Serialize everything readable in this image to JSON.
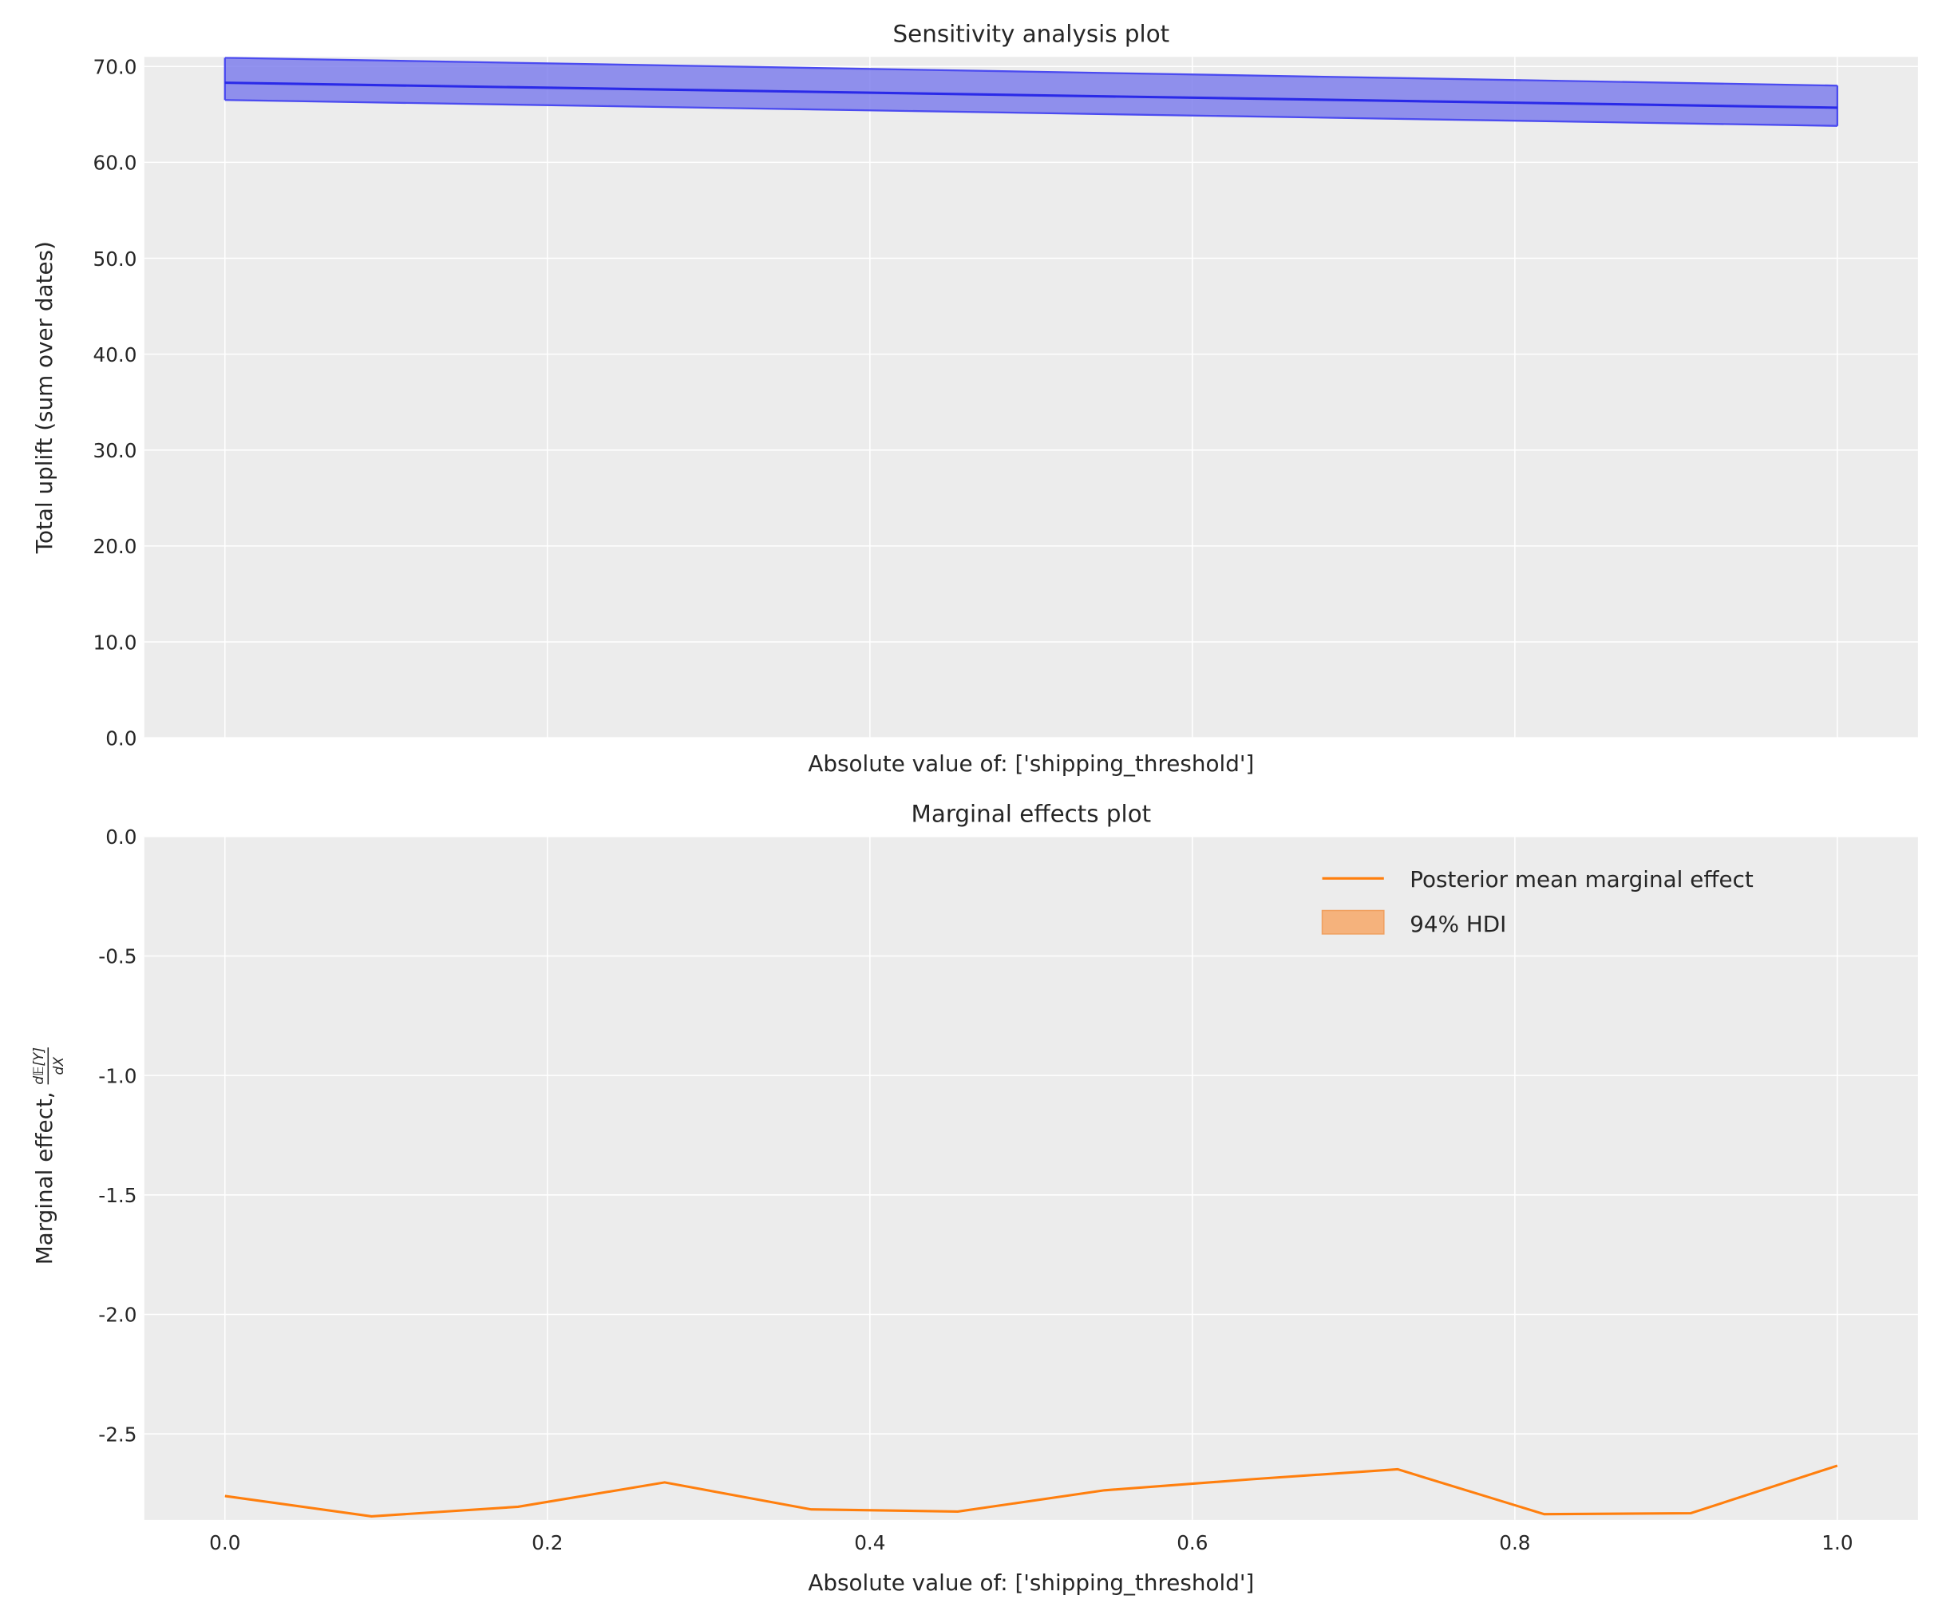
{
  "chart_data": [
    {
      "type": "line",
      "title": "Sensitivity analysis plot",
      "xlabel": "Absolute value of: ['shipping_threshold']",
      "ylabel": "Total uplift (sum over dates)",
      "xlim": [
        -0.05,
        1.05
      ],
      "ylim": [
        0,
        71.0
      ],
      "x_ticks": [
        0.0,
        0.2,
        0.4,
        0.6,
        0.8,
        1.0
      ],
      "x_tick_labels_shown": false,
      "y_ticks": [
        0,
        10,
        20,
        30,
        40,
        50,
        60,
        70
      ],
      "y_tick_labels": [
        "0.0",
        "10.0",
        "20.0",
        "30.0",
        "40.0",
        "50.0",
        "60.0",
        "70.0"
      ],
      "grid": true,
      "background": "#ececec",
      "series": [
        {
          "kind": "line",
          "color": "#2a2ae8",
          "x": [
            0.0,
            1.0
          ],
          "y": [
            68.3,
            65.7
          ]
        },
        {
          "kind": "band",
          "color": "#7f7fec",
          "x": [
            0.0,
            1.0
          ],
          "lower": [
            66.5,
            63.8
          ],
          "upper": [
            70.9,
            68.0
          ]
        }
      ]
    },
    {
      "type": "line",
      "title": "Marginal effects plot",
      "xlabel": "Absolute value of: ['shipping_threshold']",
      "ylabel": "Marginal effect,",
      "ylabel_fraction": {
        "numerator": "d𝔼[Y]",
        "denominator": "dX"
      },
      "xlim": [
        -0.05,
        1.05
      ],
      "ylim": [
        -2.86,
        0.0
      ],
      "x_ticks": [
        0.0,
        0.2,
        0.4,
        0.6,
        0.8,
        1.0
      ],
      "x_tick_labels": [
        "0.0",
        "0.2",
        "0.4",
        "0.6",
        "0.8",
        "1.0"
      ],
      "y_ticks": [
        0.0,
        -0.5,
        -1.0,
        -1.5,
        -2.0,
        -2.5
      ],
      "y_tick_labels": [
        "0.0",
        "-0.5",
        "-1.0",
        "-1.5",
        "-2.0",
        "-2.5"
      ],
      "grid": true,
      "background": "#ececec",
      "legend": {
        "placement": "upper right",
        "entries": [
          {
            "label": "Posterior mean marginal effect",
            "kind": "line",
            "color": "#ff7f0e"
          },
          {
            "label": "94% HDI",
            "kind": "patch",
            "color": "#f5b27c"
          }
        ]
      },
      "series": [
        {
          "name": "Posterior mean marginal effect",
          "kind": "line",
          "color": "#ff7f0e",
          "x": [
            0.0,
            0.0909,
            0.1818,
            0.2727,
            0.3636,
            0.4545,
            0.5455,
            0.6364,
            0.7273,
            0.8182,
            0.9091,
            1.0
          ],
          "y": [
            -2.76,
            -2.845,
            -2.805,
            -2.703,
            -2.816,
            -2.825,
            -2.736,
            -2.69,
            -2.648,
            -2.836,
            -2.832,
            -2.633
          ]
        }
      ]
    }
  ]
}
